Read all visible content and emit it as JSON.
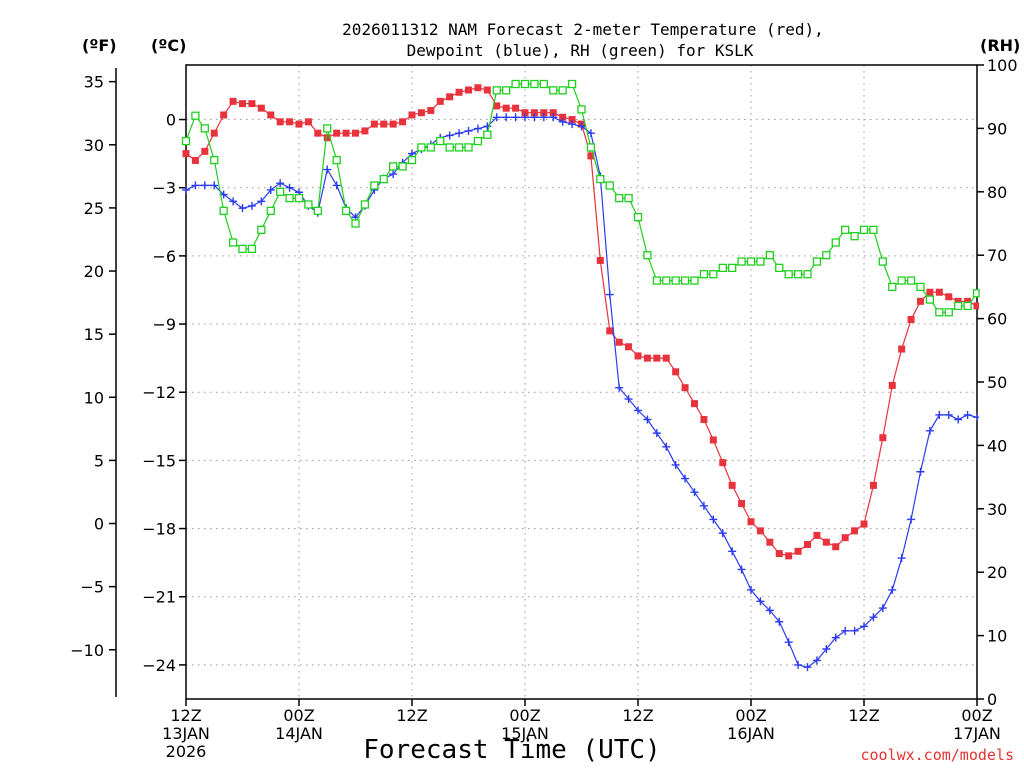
{
  "chart_data": {
    "type": "line",
    "title": [
      "2026011312 NAM Forecast 2-meter Temperature (red),",
      "Dewpoint (blue), RH (green) for KSLK"
    ],
    "xlabel": "Forecast Time (UTC)",
    "credit": "coolwx.com/models",
    "unit_labels": {
      "f": "(ºF)",
      "c": "(ºC)",
      "rh": "(RH)"
    },
    "x_range": [
      0,
      84
    ],
    "c_range": [
      -25.5,
      2.4
    ],
    "rh_range": [
      0,
      100
    ],
    "x_ticks": [
      {
        "x": 0,
        "lines": [
          "12Z",
          "13JAN",
          "2026"
        ]
      },
      {
        "x": 12,
        "lines": [
          "00Z",
          "14JAN"
        ]
      },
      {
        "x": 24,
        "lines": [
          "12Z"
        ]
      },
      {
        "x": 36,
        "lines": [
          "00Z",
          "15JAN"
        ]
      },
      {
        "x": 48,
        "lines": [
          "12Z"
        ]
      },
      {
        "x": 60,
        "lines": [
          "00Z",
          "16JAN"
        ]
      },
      {
        "x": 72,
        "lines": [
          "12Z"
        ]
      },
      {
        "x": 84,
        "lines": [
          "00Z",
          "17JAN"
        ]
      }
    ],
    "c_ticks": [
      {
        "value": 0,
        "label": "0"
      },
      {
        "value": -3,
        "label": "−3"
      },
      {
        "value": -6,
        "label": "−6"
      },
      {
        "value": -9,
        "label": "−9"
      },
      {
        "value": -12,
        "label": "−12"
      },
      {
        "value": -15,
        "label": "−15"
      },
      {
        "value": -18,
        "label": "−18"
      },
      {
        "value": -21,
        "label": "−21"
      },
      {
        "value": -24,
        "label": "−24"
      }
    ],
    "f_ticks": [
      {
        "value": 35,
        "label": "35"
      },
      {
        "value": 30,
        "label": "30"
      },
      {
        "value": 25,
        "label": "25"
      },
      {
        "value": 20,
        "label": "20"
      },
      {
        "value": 15,
        "label": "15"
      },
      {
        "value": 10,
        "label": "10"
      },
      {
        "value": 5,
        "label": "5"
      },
      {
        "value": 0,
        "label": "0"
      },
      {
        "value": -5,
        "label": "−5"
      },
      {
        "value": -10,
        "label": "−10"
      }
    ],
    "rh_ticks": [
      {
        "value": 100,
        "label": "100"
      },
      {
        "value": 90,
        "label": "90"
      },
      {
        "value": 80,
        "label": "80"
      },
      {
        "value": 70,
        "label": "70"
      },
      {
        "value": 60,
        "label": "60"
      },
      {
        "value": 50,
        "label": "50"
      },
      {
        "value": 40,
        "label": "40"
      },
      {
        "value": 30,
        "label": "30"
      },
      {
        "value": 20,
        "label": "20"
      },
      {
        "value": 10,
        "label": "10"
      },
      {
        "value": 0,
        "label": "0"
      }
    ],
    "series": [
      {
        "name": "2-meter Temperature",
        "axis": "c",
        "color": "#e8323c",
        "marker": "square-filled",
        "x": [
          0,
          1,
          2,
          3,
          4,
          5,
          6,
          7,
          8,
          9,
          10,
          11,
          12,
          13,
          14,
          15,
          16,
          17,
          18,
          19,
          20,
          21,
          22,
          23,
          24,
          25,
          26,
          27,
          28,
          29,
          30,
          31,
          32,
          33,
          34,
          35,
          36,
          37,
          38,
          39,
          40,
          41,
          42,
          43,
          44,
          45,
          46,
          47,
          48,
          49,
          50,
          51,
          52,
          53,
          54,
          55,
          56,
          57,
          58,
          59,
          60,
          61,
          62,
          63,
          64,
          65,
          66,
          67,
          68,
          69,
          70,
          71,
          72,
          73,
          74,
          75,
          76,
          77,
          78,
          79,
          80,
          81,
          82,
          83,
          84
        ],
        "values": [
          -1.5,
          -1.8,
          -1.4,
          -0.6,
          0.2,
          0.8,
          0.7,
          0.7,
          0.5,
          0.2,
          -0.1,
          -0.1,
          -0.2,
          -0.1,
          -0.6,
          -0.8,
          -0.6,
          -0.6,
          -0.6,
          -0.5,
          -0.2,
          -0.2,
          -0.2,
          -0.1,
          0.2,
          0.3,
          0.4,
          0.8,
          1.0,
          1.2,
          1.3,
          1.4,
          1.3,
          0.6,
          0.5,
          0.5,
          0.3,
          0.3,
          0.3,
          0.3,
          0.1,
          0.0,
          -0.2,
          -1.6,
          -6.2,
          -9.3,
          -9.8,
          -10.0,
          -10.4,
          -10.5,
          -10.5,
          -10.5,
          -11.1,
          -11.8,
          -12.5,
          -13.2,
          -14.1,
          -15.1,
          -16.1,
          -16.9,
          -17.7,
          -18.1,
          -18.6,
          -19.1,
          -19.2,
          -19.0,
          -18.7,
          -18.3,
          -18.6,
          -18.8,
          -18.4,
          -18.1,
          -17.8,
          -16.1,
          -14.0,
          -11.7,
          -10.1,
          -8.8,
          -8.0,
          -7.6,
          -7.6,
          -7.8,
          -8.0,
          -8.0,
          -8.2
        ]
      },
      {
        "name": "Dewpoint",
        "axis": "c",
        "color": "#2b3cf0",
        "marker": "plus",
        "x": [
          0,
          1,
          2,
          3,
          4,
          5,
          6,
          7,
          8,
          9,
          10,
          11,
          12,
          13,
          14,
          15,
          16,
          17,
          18,
          19,
          20,
          21,
          22,
          23,
          24,
          25,
          26,
          27,
          28,
          29,
          30,
          31,
          32,
          33,
          34,
          35,
          36,
          37,
          38,
          39,
          40,
          41,
          42,
          43,
          44,
          45,
          46,
          47,
          48,
          49,
          50,
          51,
          52,
          53,
          54,
          55,
          56,
          57,
          58,
          59,
          60,
          61,
          62,
          63,
          64,
          65,
          66,
          67,
          68,
          69,
          70,
          71,
          72,
          73,
          74,
          75,
          76,
          77,
          78,
          79,
          80,
          81,
          82,
          83,
          84
        ],
        "values": [
          -3.1,
          -2.9,
          -2.9,
          -2.9,
          -3.3,
          -3.6,
          -3.9,
          -3.8,
          -3.6,
          -3.1,
          -2.8,
          -3.0,
          -3.2,
          -3.8,
          -4.1,
          -2.2,
          -2.9,
          -3.9,
          -4.3,
          -3.8,
          -3.1,
          -2.6,
          -2.4,
          -1.9,
          -1.5,
          -1.3,
          -1.1,
          -0.8,
          -0.7,
          -0.6,
          -0.5,
          -0.4,
          -0.3,
          0.1,
          0.1,
          0.1,
          0.1,
          0.1,
          0.1,
          0.1,
          -0.1,
          -0.2,
          -0.3,
          -0.6,
          -2.5,
          -7.7,
          -11.8,
          -12.3,
          -12.8,
          -13.2,
          -13.8,
          -14.4,
          -15.2,
          -15.8,
          -16.4,
          -17.0,
          -17.6,
          -18.2,
          -19.0,
          -19.8,
          -20.7,
          -21.2,
          -21.6,
          -22.1,
          -23.0,
          -24.0,
          -24.1,
          -23.8,
          -23.3,
          -22.8,
          -22.5,
          -22.5,
          -22.3,
          -21.9,
          -21.5,
          -20.7,
          -19.3,
          -17.6,
          -15.5,
          -13.7,
          -13.0,
          -13.0,
          -13.2,
          -13.0,
          -13.1
        ]
      },
      {
        "name": "RH",
        "axis": "rh",
        "color": "#1fd01f",
        "marker": "square-open",
        "x": [
          0,
          1,
          2,
          3,
          4,
          5,
          6,
          7,
          8,
          9,
          10,
          11,
          12,
          13,
          14,
          15,
          16,
          17,
          18,
          19,
          20,
          21,
          22,
          23,
          24,
          25,
          26,
          27,
          28,
          29,
          30,
          31,
          32,
          33,
          34,
          35,
          36,
          37,
          38,
          39,
          40,
          41,
          42,
          43,
          44,
          45,
          46,
          47,
          48,
          49,
          50,
          51,
          52,
          53,
          54,
          55,
          56,
          57,
          58,
          59,
          60,
          61,
          62,
          63,
          64,
          65,
          66,
          67,
          68,
          69,
          70,
          71,
          72,
          73,
          74,
          75,
          76,
          77,
          78,
          79,
          80,
          81,
          82,
          83,
          84
        ],
        "values": [
          88,
          92,
          90,
          85,
          77,
          72,
          71,
          71,
          74,
          77,
          80,
          79,
          79,
          78,
          77,
          90,
          85,
          77,
          75,
          78,
          81,
          82,
          84,
          84,
          85,
          87,
          87,
          88,
          87,
          87,
          87,
          88,
          89,
          96,
          96,
          97,
          97,
          97,
          97,
          96,
          96,
          97,
          93,
          87,
          82,
          81,
          79,
          79,
          76,
          70,
          66,
          66,
          66,
          66,
          66,
          67,
          67,
          68,
          68,
          69,
          69,
          69,
          70,
          68,
          67,
          67,
          67,
          69,
          70,
          72,
          74,
          73,
          74,
          74,
          69,
          65,
          66,
          66,
          65,
          63,
          61,
          61,
          62,
          62,
          64
        ]
      }
    ]
  }
}
